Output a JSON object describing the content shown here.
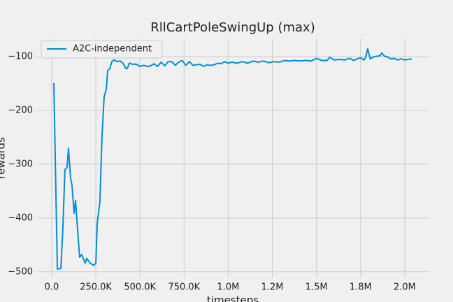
{
  "chart_data": {
    "type": "line",
    "title": "RllCartPoleSwingUp (max)",
    "xlabel": "timesteps",
    "ylabel": "rewards",
    "legend": "upper left",
    "grid": true,
    "xlim": [
      -87000,
      2139000
    ],
    "ylim": [
      -512,
      -66
    ],
    "xticks": [
      {
        "value": 0,
        "label": "0.0"
      },
      {
        "value": 250000,
        "label": "250.0K"
      },
      {
        "value": 500000,
        "label": "500.0K"
      },
      {
        "value": 750000,
        "label": "750.0K"
      },
      {
        "value": 1000000,
        "label": "1.0M"
      },
      {
        "value": 1250000,
        "label": "1.2M"
      },
      {
        "value": 1500000,
        "label": "1.5M"
      },
      {
        "value": 1750000,
        "label": "1.8M"
      },
      {
        "value": 2000000,
        "label": "2.0M"
      }
    ],
    "yticks": [
      {
        "value": -500,
        "label": "−500"
      },
      {
        "value": -400,
        "label": "−400"
      },
      {
        "value": -300,
        "label": "−300"
      },
      {
        "value": -200,
        "label": "−200"
      },
      {
        "value": -100,
        "label": "−100"
      }
    ],
    "x": [
      12000,
      32000,
      52000,
      63000,
      75000,
      87000,
      95000,
      107000,
      115000,
      127000,
      135000,
      147000,
      158000,
      170000,
      182000,
      190000,
      198000,
      218000,
      238000,
      250000,
      258000,
      273000,
      285000,
      297000,
      309000,
      317000,
      329000,
      341000,
      353000,
      372000,
      388000,
      404000,
      420000,
      428000,
      440000,
      460000,
      480000,
      500000,
      520000,
      540000,
      560000,
      580000,
      600000,
      620000,
      640000,
      660000,
      680000,
      700000,
      720000,
      740000,
      760000,
      780000,
      800000,
      820000,
      840000,
      860000,
      880000,
      900000,
      920000,
      940000,
      960000,
      980000,
      1000000,
      1020000,
      1050000,
      1080000,
      1110000,
      1140000,
      1170000,
      1200000,
      1230000,
      1260000,
      1290000,
      1320000,
      1350000,
      1380000,
      1410000,
      1440000,
      1470000,
      1500000,
      1530000,
      1560000,
      1575000,
      1600000,
      1630000,
      1660000,
      1690000,
      1710000,
      1730000,
      1750000,
      1770000,
      1780000,
      1790000,
      1805000,
      1825000,
      1845000,
      1860000,
      1870000,
      1885000,
      1900000,
      1920000,
      1940000,
      1960000,
      1980000,
      2000000,
      2020000,
      2040000
    ],
    "series": [
      {
        "name": "A2C-independent",
        "color": "#008fd5",
        "values": [
          -149,
          -495,
          -494,
          -420,
          -310,
          -306,
          -270,
          -326,
          -339,
          -391,
          -367,
          -423,
          -473,
          -468,
          -478,
          -484,
          -475,
          -484,
          -488,
          -484,
          -410,
          -370,
          -248,
          -174,
          -161,
          -126,
          -122,
          -109,
          -106,
          -109,
          -108,
          -112,
          -122,
          -122,
          -112,
          -114,
          -114,
          -118,
          -116,
          -118,
          -117,
          -113,
          -118,
          -110,
          -117,
          -109,
          -109,
          -116,
          -110,
          -107,
          -116,
          -109,
          -116,
          -115,
          -114,
          -118,
          -115,
          -116,
          -115,
          -112,
          -113,
          -109,
          -112,
          -110,
          -112,
          -109,
          -112,
          -108,
          -110,
          -108,
          -111,
          -109,
          -110,
          -107,
          -108,
          -107,
          -108,
          -107,
          -108,
          -103,
          -107,
          -107,
          -101,
          -106,
          -105,
          -106,
          -103,
          -107,
          -104,
          -102,
          -106,
          -100,
          -85,
          -104,
          -100,
          -99,
          -98,
          -93,
          -99,
          -100,
          -104,
          -103,
          -106,
          -104,
          -106,
          -105,
          -104
        ]
      }
    ]
  }
}
